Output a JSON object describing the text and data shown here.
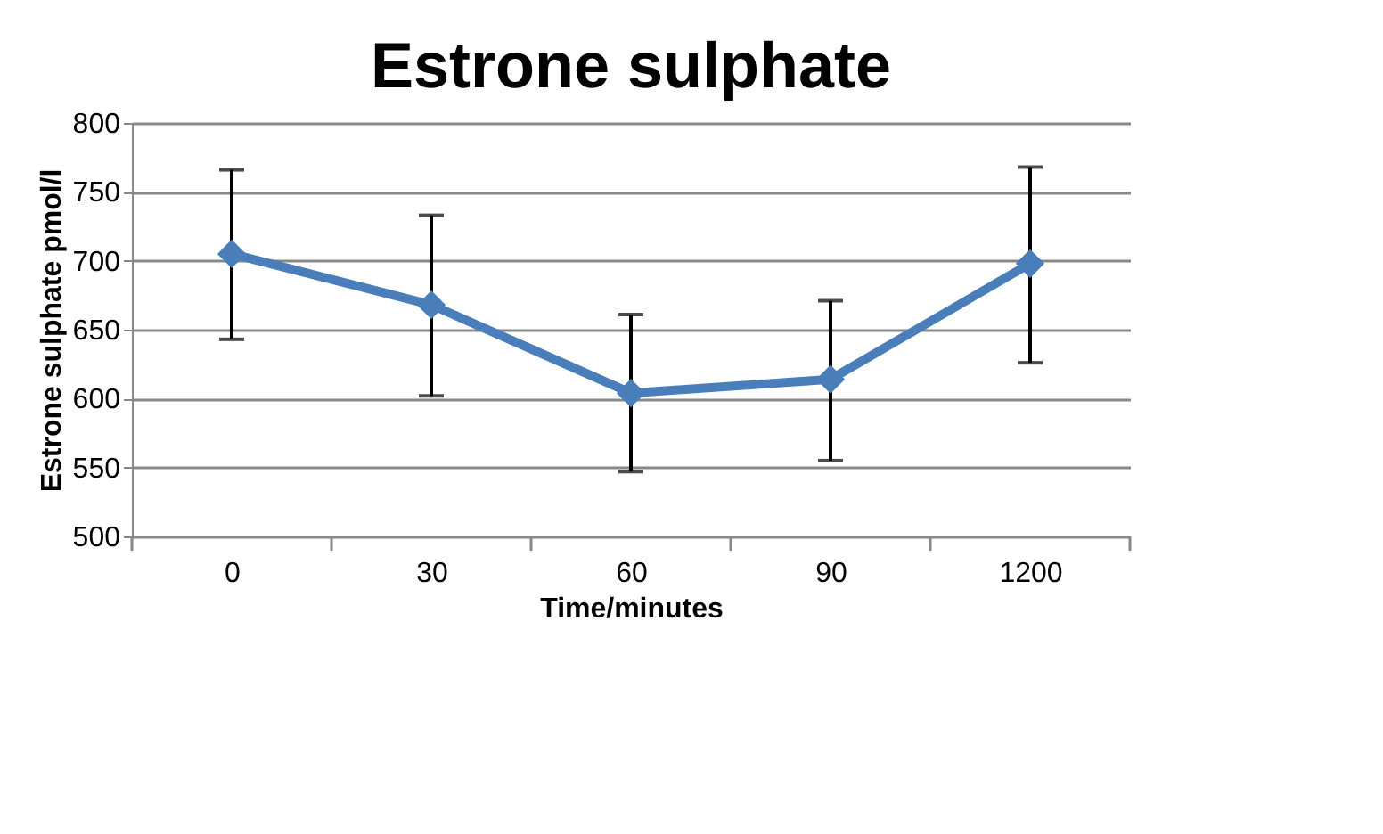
{
  "chart_data": {
    "type": "line",
    "title": "Estrone sulphate",
    "xlabel": "Time/minutes",
    "ylabel": "Estrone sulphate pmol/l",
    "categories": [
      "0",
      "30",
      "60",
      "90",
      "1200"
    ],
    "series": [
      {
        "color": "#4a7ebb",
        "values": [
          705,
          668,
          604,
          614,
          698
        ],
        "errors": [
          [
            643,
            766
          ],
          [
            602,
            733
          ],
          [
            547,
            661
          ],
          [
            555,
            671
          ],
          [
            626,
            768
          ]
        ]
      }
    ],
    "ylim": [
      500,
      800
    ],
    "yticks": [
      500,
      550,
      600,
      650,
      700,
      750,
      800
    ],
    "grid": "y",
    "marker": "diamond",
    "line_style": "solid"
  }
}
